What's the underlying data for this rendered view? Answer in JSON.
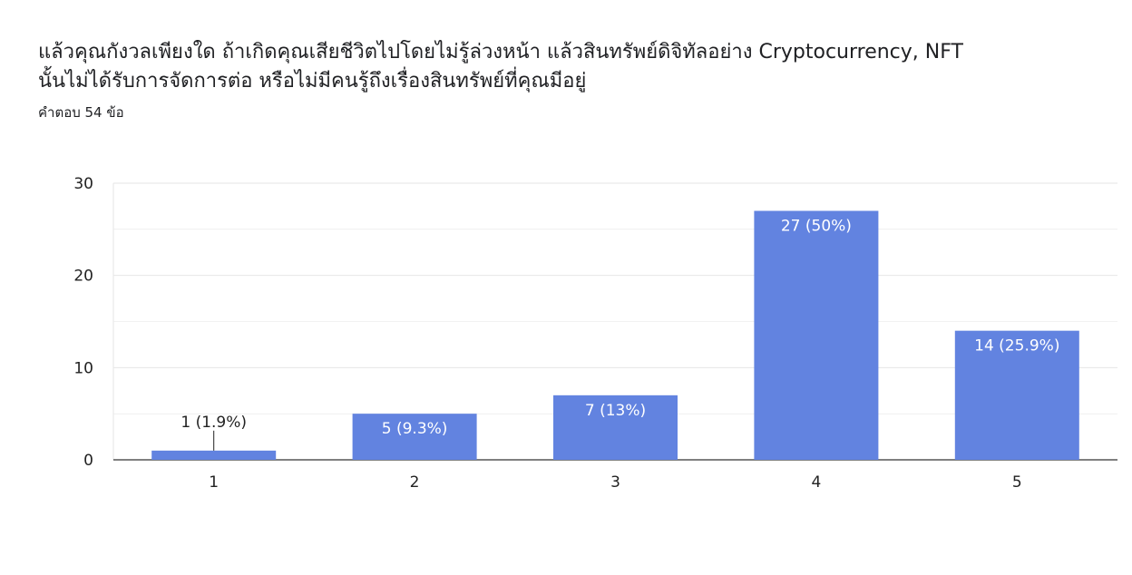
{
  "header": {
    "title_line1": "แล้วคุณกังวลเพียงใด ถ้าเกิดคุณเสียชีวิตไปโดยไม่รู้ล่วงหน้า แล้วสินทรัพย์ดิจิทัลอย่าง Cryptocurrency, NFT",
    "title_line2": "นั้นไม่ได้รับการจัดการต่อ หรือไม่มีคนรู้ถึงเรื่องสินทรัพย์ที่คุณมีอยู่",
    "response_count": "คำตอบ 54 ข้อ"
  },
  "colors": {
    "bar": "#6283e0",
    "grid": "#e6e6e6",
    "axis": "#333333",
    "label_inside": "#ffffff",
    "label_outside": "#222222"
  },
  "chart_data": {
    "type": "bar",
    "categories": [
      "1",
      "2",
      "3",
      "4",
      "5"
    ],
    "values": [
      1,
      5,
      7,
      27,
      14
    ],
    "data_labels": [
      "1 (1.9%)",
      "5 (9.3%)",
      "7 (13%)",
      "27 (50%)",
      "14 (25.9%)"
    ],
    "ylim": [
      0,
      30
    ],
    "yticks": [
      "0",
      "10",
      "20",
      "30"
    ],
    "grid": true
  }
}
